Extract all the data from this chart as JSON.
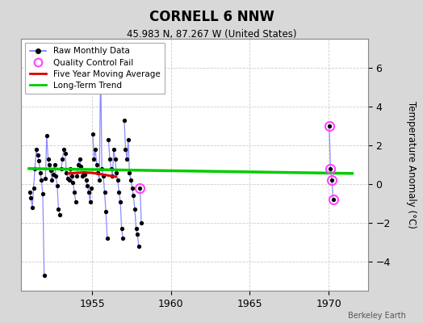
{
  "title": "CORNELL 6 NNW",
  "subtitle": "45.983 N, 87.267 W (United States)",
  "ylabel": "Temperature Anomaly (°C)",
  "credit": "Berkeley Earth",
  "xlim": [
    1950.5,
    1972.5
  ],
  "ylim": [
    -5.5,
    7.5
  ],
  "yticks": [
    -4,
    -2,
    0,
    2,
    4,
    6
  ],
  "xticks": [
    1955,
    1960,
    1965,
    1970
  ],
  "background_color": "#d8d8d8",
  "plot_bg_color": "#ffffff",
  "raw_segments": [
    {
      "x": [
        1951.04,
        1951.12,
        1951.21,
        1951.29,
        1951.37,
        1951.46,
        1951.54,
        1951.62,
        1951.71,
        1951.79,
        1951.87,
        1951.96
      ],
      "y": [
        -0.4,
        -0.7,
        -1.2,
        -0.2,
        0.8,
        1.8,
        1.5,
        1.2,
        0.6,
        0.2,
        -0.5,
        -4.7
      ]
    },
    {
      "x": [
        1952.04,
        1952.12,
        1952.21,
        1952.29,
        1952.37,
        1952.46,
        1952.54,
        1952.62,
        1952.71,
        1952.79,
        1952.87,
        1952.96
      ],
      "y": [
        0.3,
        2.5,
        1.3,
        1.0,
        0.7,
        0.2,
        0.5,
        1.0,
        0.4,
        -0.1,
        -1.3,
        -1.6
      ]
    },
    {
      "x": [
        1953.04,
        1953.12,
        1953.21,
        1953.29,
        1953.37,
        1953.46,
        1953.54,
        1953.62,
        1953.71,
        1953.79,
        1953.87,
        1953.96
      ],
      "y": [
        0.8,
        1.3,
        1.8,
        1.6,
        0.6,
        0.3,
        0.2,
        0.8,
        0.4,
        0.1,
        -0.4,
        -0.9
      ]
    },
    {
      "x": [
        1954.04,
        1954.12,
        1954.21,
        1954.29,
        1954.37,
        1954.46,
        1954.54,
        1954.62,
        1954.71,
        1954.79,
        1954.87,
        1954.96
      ],
      "y": [
        0.4,
        1.0,
        1.3,
        0.9,
        0.4,
        0.6,
        0.5,
        0.2,
        -0.1,
        -0.4,
        -0.9,
        -0.2
      ]
    },
    {
      "x": [
        1955.04,
        1955.12,
        1955.21,
        1955.29,
        1955.37,
        1955.46,
        1955.54,
        1955.62,
        1955.71,
        1955.79,
        1955.87,
        1955.96
      ],
      "y": [
        2.6,
        1.3,
        1.8,
        1.0,
        0.6,
        0.2,
        6.2,
        0.8,
        0.4,
        -0.4,
        -1.4,
        -2.8
      ]
    },
    {
      "x": [
        1956.04,
        1956.12,
        1956.21,
        1956.29,
        1956.37,
        1956.46,
        1956.54,
        1956.62,
        1956.71,
        1956.79,
        1956.87,
        1956.96
      ],
      "y": [
        2.3,
        1.3,
        0.8,
        0.4,
        1.8,
        1.3,
        0.6,
        0.2,
        -0.4,
        -0.9,
        -2.3,
        -2.8
      ]
    },
    {
      "x": [
        1957.04,
        1957.12,
        1957.21,
        1957.29,
        1957.37,
        1957.46,
        1957.54,
        1957.62,
        1957.71,
        1957.79,
        1957.87,
        1957.96
      ],
      "y": [
        3.3,
        1.8,
        1.3,
        2.3,
        0.6,
        0.2,
        -0.2,
        -0.6,
        -1.3,
        -2.3,
        -2.6,
        -3.2
      ]
    },
    {
      "x": [
        1958.04,
        1958.12
      ],
      "y": [
        -0.2,
        -2.0
      ]
    },
    {
      "x": [
        1970.04,
        1970.12,
        1970.21,
        1970.29
      ],
      "y": [
        3.0,
        0.8,
        0.2,
        -0.8
      ]
    }
  ],
  "qc_fail_x": [
    1958.04,
    1970.04,
    1970.12,
    1970.21,
    1970.29
  ],
  "qc_fail_y": [
    -0.2,
    3.0,
    0.8,
    0.2,
    -0.8
  ],
  "moving_avg_x": [
    1953.5,
    1954.0,
    1954.5,
    1955.0,
    1955.5,
    1956.0,
    1956.5
  ],
  "moving_avg_y": [
    0.55,
    0.58,
    0.6,
    0.58,
    0.52,
    0.45,
    0.38
  ],
  "trend_x": [
    1951.0,
    1971.5
  ],
  "trend_y": [
    0.8,
    0.55
  ],
  "colors": {
    "raw_line": "#7777ff",
    "raw_dot": "#000000",
    "qc_fail": "#ff44ff",
    "moving_avg": "#dd0000",
    "trend": "#00cc00",
    "grid": "#cccccc"
  }
}
